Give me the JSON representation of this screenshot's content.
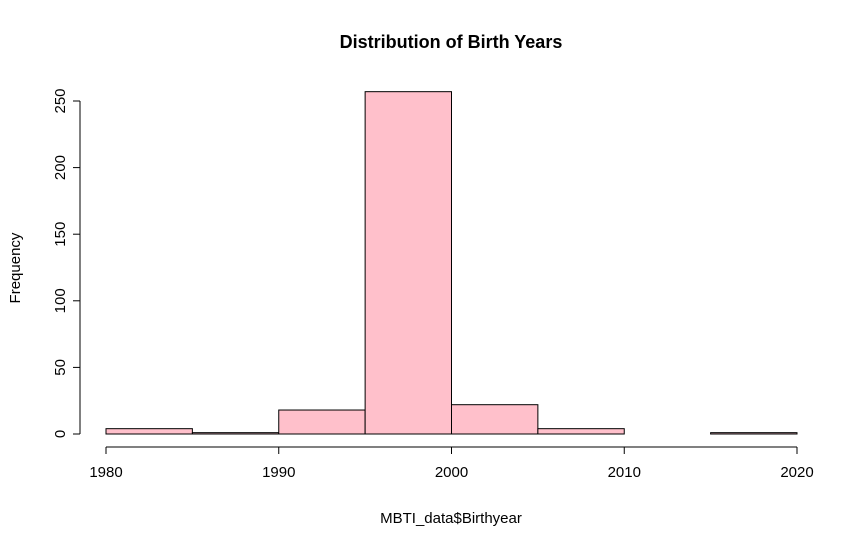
{
  "chart_data": {
    "type": "bar",
    "title": "Distribution of Birth Years",
    "xlabel": "MBTI_data$Birthyear",
    "ylabel": "Frequency",
    "xlim": [
      1980,
      2020
    ],
    "ylim": [
      0,
      250
    ],
    "x_ticks": [
      1980,
      1990,
      2000,
      2010,
      2020
    ],
    "y_ticks": [
      0,
      50,
      100,
      150,
      200,
      250
    ],
    "bin_width": 5,
    "bins": [
      {
        "start": 1980,
        "end": 1985,
        "count": 4
      },
      {
        "start": 1985,
        "end": 1990,
        "count": 1
      },
      {
        "start": 1990,
        "end": 1995,
        "count": 18
      },
      {
        "start": 1995,
        "end": 2000,
        "count": 257
      },
      {
        "start": 2000,
        "end": 2005,
        "count": 22
      },
      {
        "start": 2005,
        "end": 2010,
        "count": 4
      },
      {
        "start": 2010,
        "end": 2015,
        "count": 0
      },
      {
        "start": 2015,
        "end": 2020,
        "count": 1
      }
    ],
    "bar_color": "#FFC0CB",
    "border_color": "#000000",
    "grid": false
  }
}
